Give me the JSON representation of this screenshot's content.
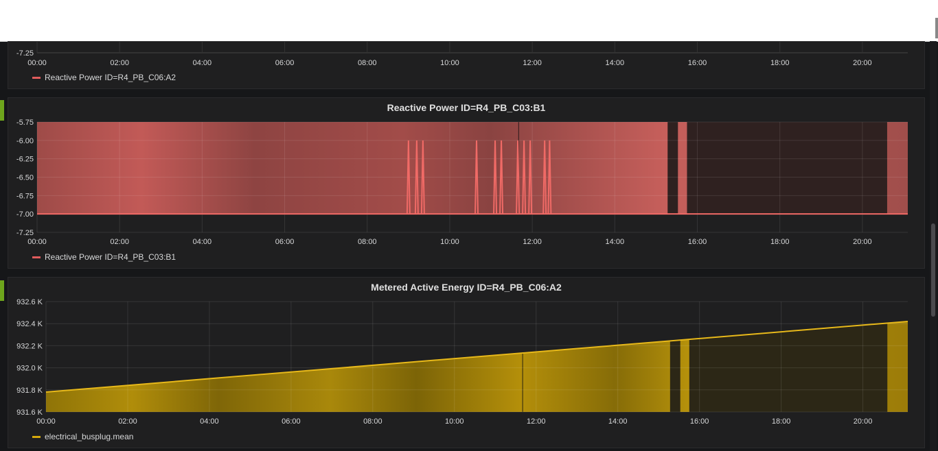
{
  "panels": [
    {
      "title": "",
      "legend": "Reactive Power ID=R4_PB_C06:A2",
      "color": "#e05c5c",
      "y_ticks": [
        "-7.25"
      ],
      "x_ticks": [
        "00:00",
        "02:00",
        "04:00",
        "06:00",
        "08:00",
        "10:00",
        "12:00",
        "14:00",
        "16:00",
        "18:00",
        "20:00"
      ]
    },
    {
      "title": "Reactive Power ID=R4_PB_C03:B1",
      "legend": "Reactive Power ID=R4_PB_C03:B1",
      "color": "#e05c5c",
      "y_ticks": [
        "-5.75",
        "-6.00",
        "-6.25",
        "-6.50",
        "-6.75",
        "-7.00",
        "-7.25"
      ],
      "x_ticks": [
        "00:00",
        "02:00",
        "04:00",
        "06:00",
        "08:00",
        "10:00",
        "12:00",
        "14:00",
        "16:00",
        "18:00",
        "20:00"
      ]
    },
    {
      "title": "Metered Active Energy ID=R4_PB_C06:A2",
      "legend": "electrical_busplug.mean",
      "color": "#d6a90c",
      "y_ticks": [
        "932.6 K",
        "932.4 K",
        "932.2 K",
        "932.0 K",
        "931.8 K",
        "931.6 K"
      ],
      "x_ticks": [
        "00:00",
        "02:00",
        "04:00",
        "06:00",
        "08:00",
        "10:00",
        "12:00",
        "14:00",
        "16:00",
        "18:00",
        "20:00"
      ]
    }
  ],
  "chart_data": [
    {
      "type": "line",
      "series": [
        {
          "name": "Reactive Power ID=R4_PB_C06:A2"
        }
      ],
      "ylim_min_visible": -7.25
    },
    {
      "type": "area",
      "title": "Reactive Power ID=R4_PB_C03:B1",
      "ylim": [
        -7.25,
        -5.75
      ],
      "x_range_hours": [
        0,
        21.1
      ],
      "baseline_value": -7.0,
      "fill_top_value": -5.75,
      "spikes_to_minus_6": [
        9.0,
        9.2,
        9.35,
        10.65,
        11.1,
        11.25,
        11.65,
        11.8,
        11.95,
        12.3,
        12.42
      ],
      "dark_gaps_hours": [
        [
          15.28,
          15.53
        ],
        [
          15.75,
          20.6
        ]
      ],
      "series": [
        {
          "name": "Reactive Power ID=R4_PB_C03:B1"
        }
      ]
    },
    {
      "type": "area",
      "title": "Metered Active Energy ID=R4_PB_C06:A2",
      "ylim": [
        931.6,
        932.6
      ],
      "y_unit": "K",
      "x_range_hours": [
        0,
        21.1
      ],
      "line_start": 931.78,
      "line_end": 932.42,
      "dark_gaps_hours": [
        [
          15.28,
          15.53
        ],
        [
          15.75,
          20.6
        ]
      ],
      "series": [
        {
          "name": "electrical_busplug.mean"
        }
      ]
    }
  ]
}
